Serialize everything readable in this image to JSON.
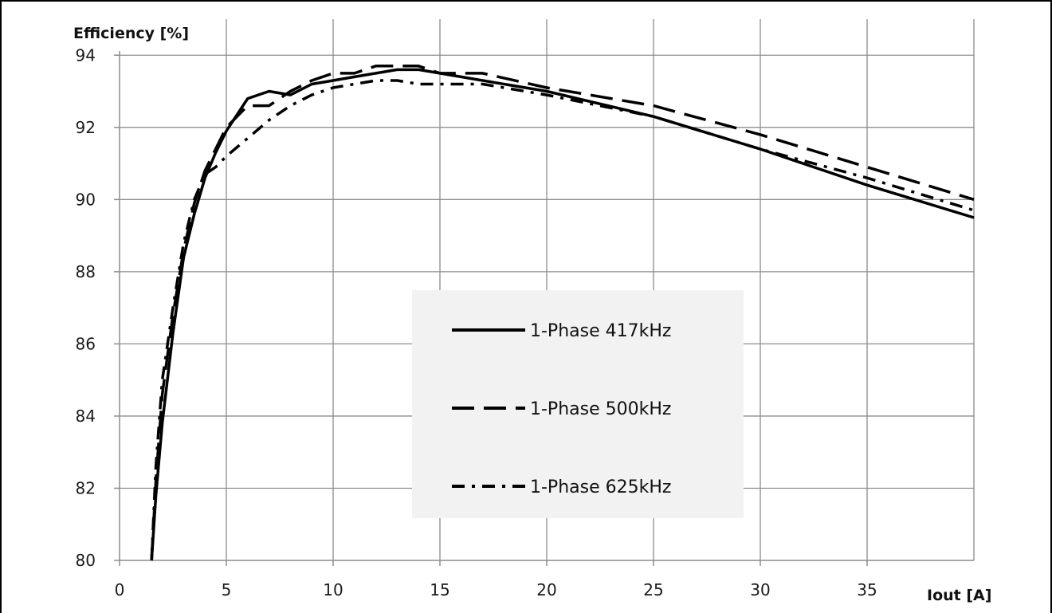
{
  "chart_data": {
    "type": "line",
    "title": "",
    "ylabel": "Efficiency  [%]",
    "xlabel": "Iout [A]",
    "xlim": [
      0,
      40
    ],
    "ylim": [
      80,
      95
    ],
    "xticks": [
      0,
      5,
      10,
      15,
      20,
      25,
      30,
      35
    ],
    "yticks": [
      80,
      82,
      84,
      86,
      88,
      90,
      92,
      94
    ],
    "grid": true,
    "legend_position": "center",
    "series": [
      {
        "name": "1-Phase 417kHz",
        "style": "solid",
        "x": [
          1.5,
          1.7,
          2.0,
          2.5,
          3.0,
          3.5,
          4.0,
          4.5,
          5.0,
          6.0,
          7.0,
          8.0,
          9.0,
          10.0,
          11.0,
          12.0,
          13.0,
          14.0,
          15.0,
          17.0,
          20.0,
          25.0,
          30.0,
          35.0,
          40.0
        ],
        "y": [
          80.0,
          81.8,
          83.8,
          86.3,
          88.4,
          89.6,
          90.6,
          91.3,
          91.9,
          92.8,
          93.0,
          92.9,
          93.2,
          93.3,
          93.4,
          93.5,
          93.6,
          93.6,
          93.5,
          93.3,
          93.0,
          92.3,
          91.4,
          90.4,
          89.5
        ]
      },
      {
        "name": "1-Phase 500kHz",
        "style": "dashed",
        "x": [
          1.5,
          1.7,
          2.0,
          2.5,
          3.0,
          3.5,
          4.0,
          4.5,
          5.0,
          6.0,
          7.0,
          8.0,
          9.0,
          10.0,
          11.0,
          12.0,
          13.0,
          14.0,
          15.0,
          17.0,
          20.0,
          25.0,
          30.0,
          35.0,
          40.0
        ],
        "y": [
          80.0,
          82.2,
          84.6,
          86.8,
          88.6,
          89.9,
          90.8,
          91.4,
          92.0,
          92.6,
          92.6,
          93.0,
          93.3,
          93.5,
          93.5,
          93.7,
          93.7,
          93.7,
          93.5,
          93.5,
          93.1,
          92.6,
          91.8,
          90.9,
          90.0
        ]
      },
      {
        "name": "1-Phase 625kHz",
        "style": "dashdot",
        "x": [
          1.5,
          1.7,
          2.0,
          2.5,
          3.0,
          3.5,
          4.0,
          4.5,
          5.0,
          6.0,
          7.0,
          8.0,
          9.0,
          10.0,
          11.0,
          12.0,
          13.0,
          14.0,
          15.0,
          17.0,
          20.0,
          25.0,
          30.0,
          35.0,
          40.0
        ],
        "y": [
          80.0,
          82.6,
          85.0,
          87.0,
          88.8,
          90.0,
          90.7,
          90.9,
          91.2,
          91.7,
          92.2,
          92.6,
          92.9,
          93.1,
          93.2,
          93.3,
          93.3,
          93.2,
          93.2,
          93.2,
          92.9,
          92.3,
          91.4,
          90.6,
          89.7
        ]
      }
    ]
  }
}
